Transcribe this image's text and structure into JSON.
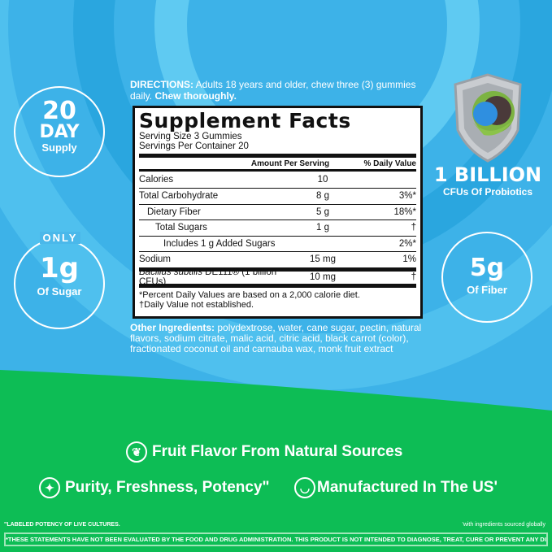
{
  "colors": {
    "sky": "#3db2e8",
    "green": "#0dbd55"
  },
  "directions": {
    "label": "DIRECTIONS:",
    "text": " Adults 18 years and older, chew three (3) gummies daily. ",
    "emphasis": "Chew thoroughly."
  },
  "facts": {
    "title": "Supplement Facts",
    "serving_size": "Serving Size 3 Gummies",
    "servings_per_container": "Servings Per Container 20",
    "header": {
      "amount": "Amount Per Serving",
      "dv": "% Daily Value"
    },
    "rows": [
      {
        "name": "Calories",
        "amount": "10",
        "dv": ""
      },
      {
        "name": "Total Carbohydrate",
        "amount": "8 g",
        "dv": "3%*"
      },
      {
        "name": "Dietary Fiber",
        "amount": "5 g",
        "dv": "18%*"
      },
      {
        "name": "Total Sugars",
        "amount": "1 g",
        "dv": "†"
      },
      {
        "name": "Includes 1 g Added Sugars",
        "amount": "",
        "dv": "2%*"
      },
      {
        "name": "Sodium",
        "amount": "15 mg",
        "dv": "1%"
      }
    ],
    "probiotic": {
      "name_italic": "Bacillus subtilis",
      "name_rest": " DE111® (1 billion CFUs)",
      "amount": "10 mg",
      "dv": "†"
    },
    "footnote1": "*Percent Daily Values are based on a 2,000 calorie diet.",
    "footnote2": "†Daily Value not established."
  },
  "other_ingredients": {
    "label": "Other Ingredients:",
    "text": " polydextrose, water, cane sugar, pectin, natural flavors, sodium citrate, malic acid, citric acid, black carrot (color), fractionated coconut oil and carnauba wax, monk fruit extract"
  },
  "badges": {
    "supply": {
      "number": "20",
      "unit": "DAY",
      "label": "Supply"
    },
    "sugar": {
      "top": "ONLY",
      "number": "1g",
      "label": "Of Sugar"
    },
    "probiotics": {
      "number": "1 BILLION",
      "label": "CFUs Of Probiotics"
    },
    "fiber": {
      "number": "5g",
      "label": "Of Fiber"
    }
  },
  "features": [
    {
      "icon": "sprout-icon",
      "text": "Fruit Flavor From Natural Sources"
    },
    {
      "icon": "sparkle-icon",
      "text": "Purity, Freshness, Potency\""
    },
    {
      "icon": "mortar-icon",
      "text": "Manufactured In The US'"
    }
  ],
  "footnotes": {
    "left": "\"LABELED POTENCY OF LIVE CULTURES.",
    "right": "'with ingredients sourced globally",
    "disclaimer": "*THESE STATEMENTS HAVE NOT BEEN EVALUATED BY THE FOOD AND DRUG ADMINISTRATION. THIS PRODUCT IS NOT INTENDED TO DIAGNOSE, TREAT, CURE OR PREVENT ANY DISEASE."
  }
}
